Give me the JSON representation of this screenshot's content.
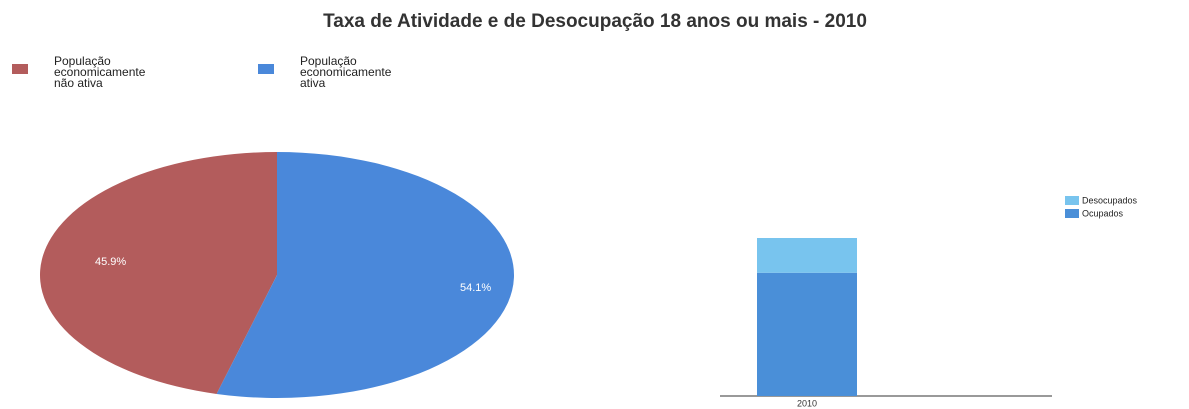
{
  "chart_data": [
    {
      "type": "pie",
      "title": "Taxa de Atividade e de Desocupação 18 anos ou mais - 2010",
      "categories": [
        "População economicamente não ativa",
        "População economicamente ativa"
      ],
      "values": [
        45.9,
        54.1
      ],
      "value_labels": [
        "45.9%",
        "54.1%"
      ],
      "colors": [
        "#b35c5c",
        "#4a88da"
      ],
      "legend": "top-left"
    },
    {
      "type": "stacked-bar",
      "categories": [
        "2010"
      ],
      "series": [
        {
          "name": "Ocupados",
          "color": "#4a8fd8",
          "values": [
            78
          ]
        },
        {
          "name": "Desocupados",
          "color": "#78c4ee",
          "values": [
            22
          ]
        }
      ],
      "legend": "top-right"
    }
  ]
}
